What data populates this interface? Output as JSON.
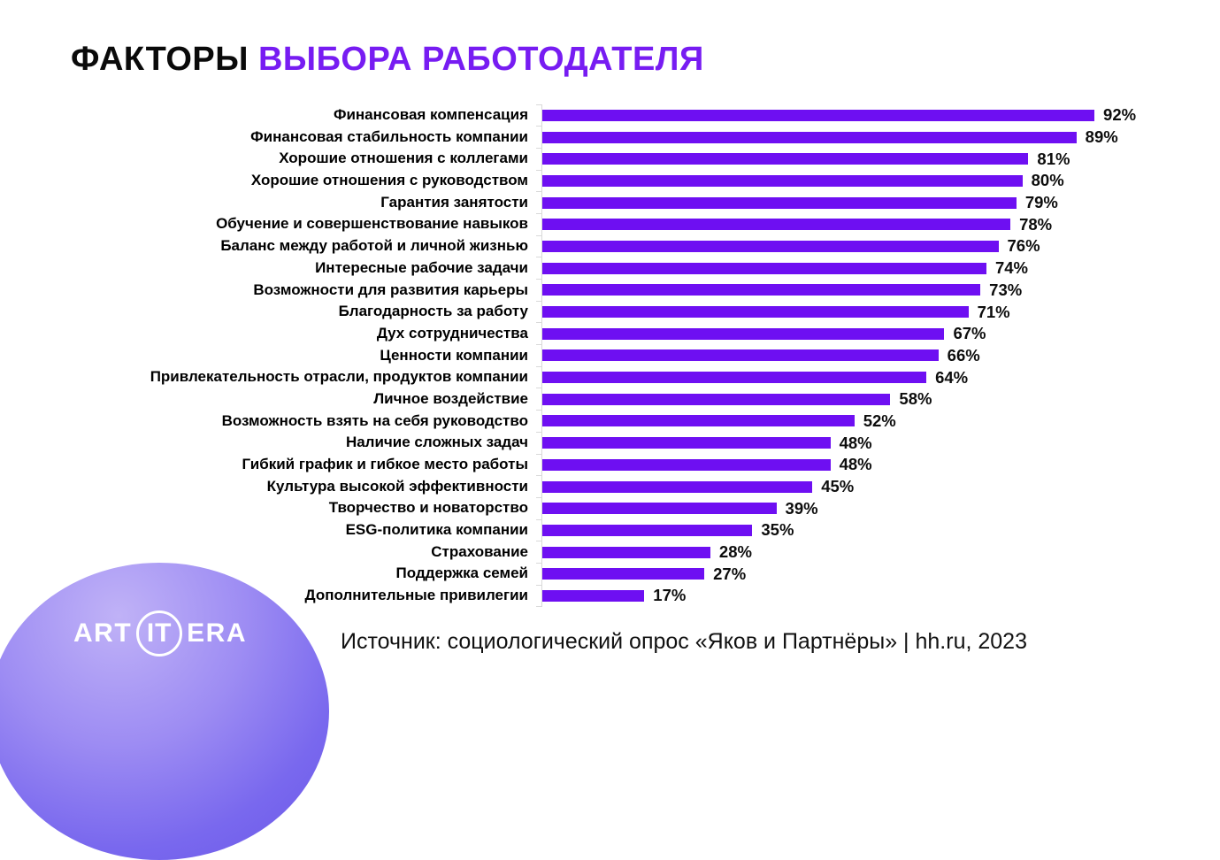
{
  "title": {
    "prefix": "ФАКТОРЫ",
    "accent": "ВЫБОРА РАБОТОДАТЕЛЯ"
  },
  "chart_data": {
    "type": "bar",
    "orientation": "horizontal",
    "title": "ФАКТОРЫ ВЫБОРА РАБОТОДАТЕЛЯ",
    "xlabel": "",
    "ylabel": "",
    "xlim": [
      0,
      100
    ],
    "grid": false,
    "legend": false,
    "value_suffix": "%",
    "categories": [
      "Финансовая компенсация",
      "Финансовая стабильность компании",
      "Хорошие отношения с коллегами",
      "Хорошие отношения с руководством",
      "Гарантия занятости",
      "Обучение и совершенствование навыков",
      "Баланс между работой и личной жизнью",
      "Интересные рабочие задачи",
      "Возможности для развития карьеры",
      "Благодарность за работу",
      "Дух сотрудничества",
      "Ценности компании",
      "Привлекательность отрасли, продуктов компании",
      "Личное воздействие",
      "Возможность взять на себя руководство",
      "Наличие сложных задач",
      "Гибкий график и гибкое место работы",
      "Культура высокой эффективности",
      "Творчество и новаторство",
      "ESG-политика компании",
      "Страхование",
      "Поддержка семей",
      "Дополнительные привилегии"
    ],
    "values": [
      92,
      89,
      81,
      80,
      79,
      78,
      76,
      74,
      73,
      71,
      67,
      66,
      64,
      58,
      52,
      48,
      48,
      45,
      39,
      35,
      28,
      27,
      17
    ],
    "bar_color": "#6E0FF2",
    "axis_color": "#D9D9D9"
  },
  "source": {
    "text": "Источник: социологический опрос «Яков и Партнёры» | hh.ru, 2023"
  },
  "logo": {
    "part1": "ART",
    "part2": "IT",
    "part3": "ERA"
  },
  "colors": {
    "background": "#FFFFFF",
    "title_text": "#0A0A0A",
    "title_accent": "#771CF2",
    "bar": "#6E0FF2",
    "axis": "#D9D9D9",
    "value_text": "#0D0D0D",
    "logo_gradient_start": "#C0B2F7",
    "logo_gradient_end": "#6A57E8",
    "logo_text": "#FFFFFF"
  }
}
